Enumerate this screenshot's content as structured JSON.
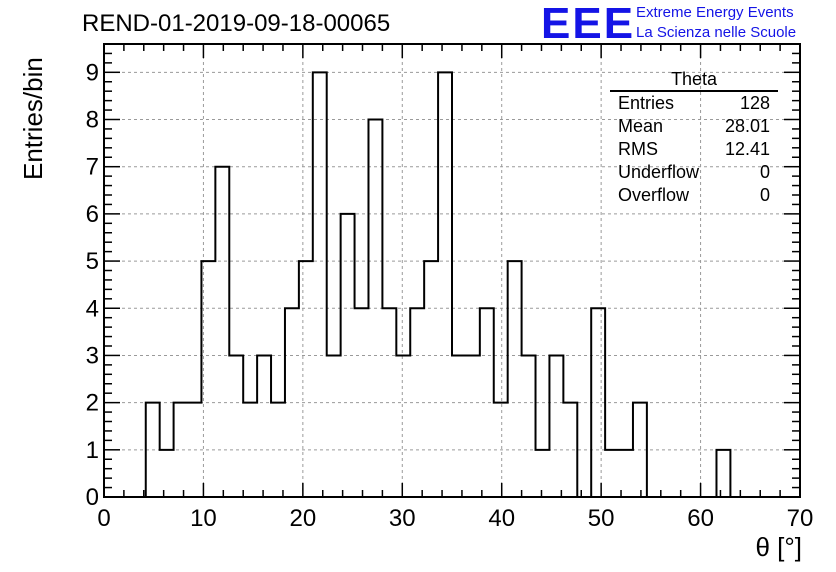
{
  "title": "REND-01-2019-09-18-00065",
  "logo": {
    "mark": "EEE",
    "line1": "Extreme Energy Events",
    "line2": "La Scienza nelle Scuole",
    "color": "#1414e6"
  },
  "stats": {
    "title": "Theta",
    "rows": [
      {
        "label": "Entries",
        "value": "128"
      },
      {
        "label": "Mean",
        "value": "28.01"
      },
      {
        "label": "RMS",
        "value": "12.41"
      },
      {
        "label": "Underflow",
        "value": "0"
      },
      {
        "label": "Overflow",
        "value": "0"
      }
    ]
  },
  "chart_data": {
    "type": "bar",
    "title": "REND-01-2019-09-18-00065",
    "xlabel": "θ [°]",
    "ylabel": "Entries/bin",
    "xlim": [
      0,
      70
    ],
    "ylim": [
      0,
      9.6
    ],
    "bin_width": 1.4,
    "grid": true,
    "line_color": "#000000",
    "xticks": [
      0,
      10,
      20,
      30,
      40,
      50,
      60,
      70
    ],
    "yticks": [
      0,
      1,
      2,
      3,
      4,
      5,
      6,
      7,
      8,
      9
    ],
    "bin_edges": [
      0,
      1.4,
      2.8,
      4.2,
      5.6,
      7.0,
      8.4,
      9.8,
      11.2,
      12.6,
      14.0,
      15.4,
      16.8,
      18.2,
      19.6,
      21.0,
      22.4,
      23.8,
      25.2,
      26.6,
      28.0,
      29.4,
      30.8,
      32.2,
      33.6,
      35.0,
      36.4,
      37.8,
      39.2,
      40.6,
      42.0,
      43.4,
      44.8,
      46.2,
      47.6,
      49.0,
      50.4,
      51.8,
      53.2,
      54.6,
      56.0,
      57.4,
      58.8,
      60.2,
      61.6,
      63.0,
      64.4,
      65.8,
      67.2,
      68.6,
      70.0
    ],
    "values": [
      0,
      0,
      0,
      2,
      1,
      2,
      2,
      5,
      7,
      3,
      2,
      3,
      2,
      4,
      5,
      9,
      3,
      6,
      4,
      8,
      4,
      3,
      4,
      5,
      9,
      3,
      3,
      4,
      2,
      5,
      3,
      1,
      3,
      2,
      0,
      4,
      1,
      1,
      2,
      0,
      0,
      0,
      0,
      0,
      1,
      0,
      0,
      0,
      0,
      0
    ]
  }
}
